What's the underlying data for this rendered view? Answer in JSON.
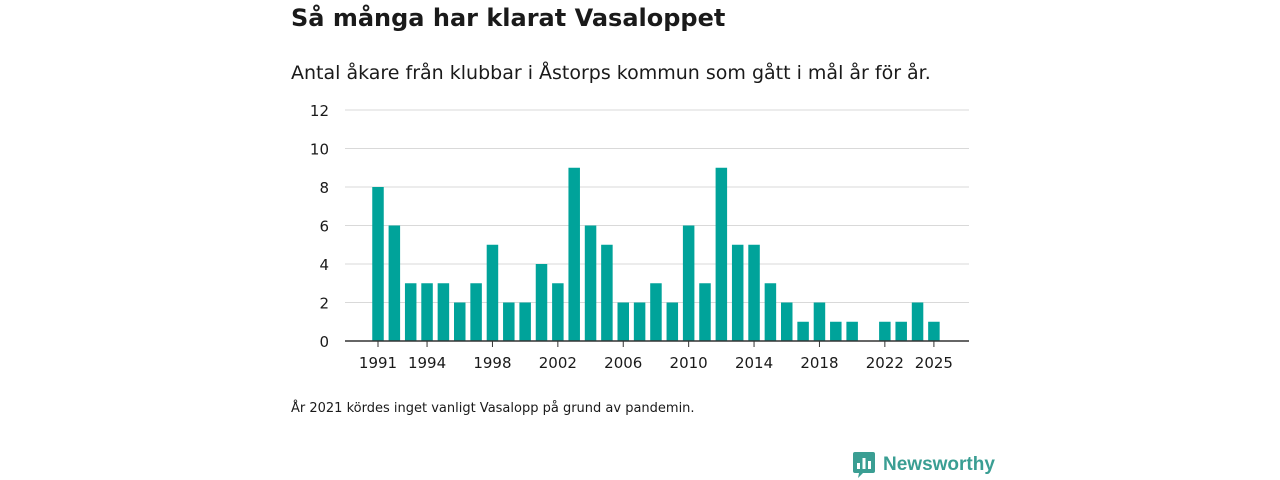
{
  "colors": {
    "bar": "#00a39a",
    "grid": "#d9d9d9",
    "axis": "#333333",
    "text": "#1a1a1a",
    "brand": "#3a9e93"
  },
  "brand": {
    "name": "Newsworthy",
    "icon": "newsworthy-logo-icon"
  },
  "chart_data": {
    "type": "bar",
    "title": "Så många har klarat Vasaloppet",
    "subtitle": "Antal åkare från klubbar i Åstorps kommun som gått i mål år för år.",
    "footnote": "År 2021 kördes inget vanligt Vasalopp på grund av pandemin.",
    "xlabel": "",
    "ylabel": "",
    "ylim": [
      0,
      12
    ],
    "yticks": [
      0,
      2,
      4,
      6,
      8,
      10,
      12
    ],
    "xticks": [
      "1991",
      "1994",
      "1998",
      "2002",
      "2006",
      "2010",
      "2014",
      "2018",
      "2022",
      "2025"
    ],
    "grid": true,
    "categories": [
      1991,
      1992,
      1993,
      1994,
      1995,
      1996,
      1997,
      1998,
      1999,
      2000,
      2001,
      2002,
      2003,
      2004,
      2005,
      2006,
      2007,
      2008,
      2009,
      2010,
      2011,
      2012,
      2013,
      2014,
      2015,
      2016,
      2017,
      2018,
      2019,
      2020,
      2021,
      2022,
      2023,
      2024,
      2025
    ],
    "values": [
      8,
      6,
      3,
      3,
      3,
      2,
      3,
      5,
      2,
      2,
      4,
      3,
      9,
      6,
      5,
      2,
      2,
      3,
      2,
      6,
      3,
      9,
      5,
      5,
      3,
      2,
      1,
      2,
      1,
      1,
      null,
      1,
      1,
      2,
      1
    ]
  }
}
